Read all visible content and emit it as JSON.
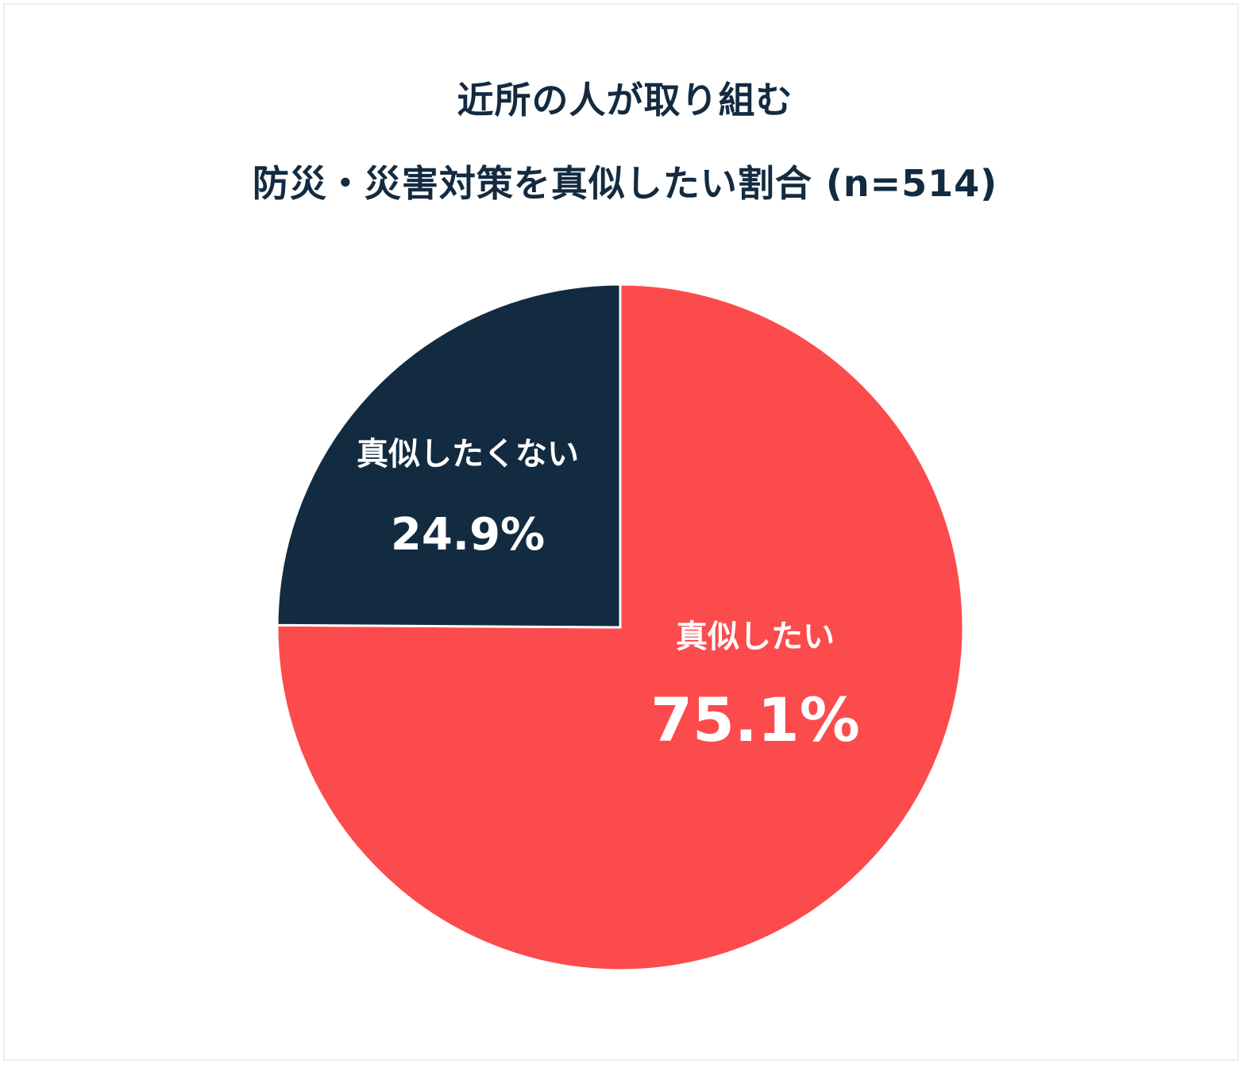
{
  "chart_data": {
    "type": "pie",
    "title": [
      "近所の人が取り組む",
      "防災・災害対策を真似したい割合 (n=514)"
    ],
    "slices": [
      {
        "label": "真似したい",
        "value": 75.1,
        "value_label": "75.1%",
        "color": "#fc4b4c"
      },
      {
        "label": "真似したくない",
        "value": 24.9,
        "value_label": "24.9%",
        "color": "#132b40"
      }
    ],
    "start": "12 o'clock",
    "direction": "clockwise"
  }
}
